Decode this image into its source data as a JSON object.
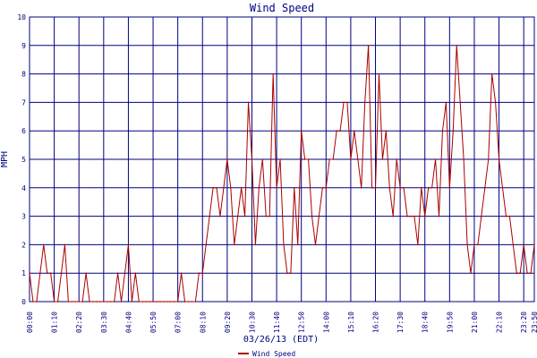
{
  "chart_data": {
    "type": "line",
    "title": "Wind Speed",
    "xlabel": "03/26/13 (EDT)",
    "ylabel": "MPH",
    "ylim": [
      0,
      10
    ],
    "xlim": [
      "00:00",
      "23:50"
    ],
    "grid": true,
    "legend_placement": "bottom-center",
    "colors": {
      "series": "#aa0000",
      "grid": "#000080",
      "frame": "#000080",
      "text": "#000080",
      "background": "#ffffff"
    },
    "x_ticks": [
      "00:00",
      "01:10",
      "02:20",
      "03:30",
      "04:40",
      "05:50",
      "07:00",
      "08:10",
      "09:20",
      "10:30",
      "11:40",
      "12:50",
      "14:00",
      "15:10",
      "16:20",
      "17:30",
      "18:40",
      "19:50",
      "21:00",
      "22:10",
      "23:20",
      "23:50"
    ],
    "y_ticks": [
      "0",
      "1",
      "2",
      "3",
      "4",
      "5",
      "6",
      "7",
      "8",
      "9",
      "10"
    ],
    "legend": [
      "Wind Speed"
    ],
    "series": [
      {
        "name": "Wind Speed",
        "x": [
          "00:00",
          "00:10",
          "00:20",
          "00:30",
          "00:40",
          "00:50",
          "01:00",
          "01:10",
          "01:20",
          "01:30",
          "01:40",
          "01:50",
          "02:00",
          "02:10",
          "02:20",
          "02:30",
          "02:40",
          "02:50",
          "03:00",
          "03:10",
          "03:20",
          "03:30",
          "03:40",
          "03:50",
          "04:00",
          "04:10",
          "04:20",
          "04:30",
          "04:40",
          "04:50",
          "05:00",
          "05:10",
          "05:20",
          "05:30",
          "05:40",
          "05:50",
          "06:00",
          "06:10",
          "06:20",
          "06:30",
          "06:40",
          "06:50",
          "07:00",
          "07:10",
          "07:20",
          "07:30",
          "07:40",
          "07:50",
          "08:00",
          "08:10",
          "08:20",
          "08:30",
          "08:40",
          "08:50",
          "09:00",
          "09:10",
          "09:20",
          "09:30",
          "09:40",
          "09:50",
          "10:00",
          "10:10",
          "10:20",
          "10:30",
          "10:40",
          "10:50",
          "11:00",
          "11:10",
          "11:20",
          "11:30",
          "11:40",
          "11:50",
          "12:00",
          "12:10",
          "12:20",
          "12:30",
          "12:40",
          "12:50",
          "13:00",
          "13:10",
          "13:20",
          "13:30",
          "13:40",
          "13:50",
          "14:00",
          "14:10",
          "14:20",
          "14:30",
          "14:40",
          "14:50",
          "15:00",
          "15:10",
          "15:20",
          "15:30",
          "15:40",
          "15:50",
          "16:00",
          "16:10",
          "16:20",
          "16:30",
          "16:40",
          "16:50",
          "17:00",
          "17:10",
          "17:20",
          "17:30",
          "17:40",
          "17:50",
          "18:00",
          "18:10",
          "18:20",
          "18:30",
          "18:40",
          "18:50",
          "19:00",
          "19:10",
          "19:20",
          "19:30",
          "19:40",
          "19:50",
          "20:00",
          "20:10",
          "20:20",
          "20:30",
          "20:40",
          "20:50",
          "21:00",
          "21:10",
          "21:20",
          "21:30",
          "21:40",
          "21:50",
          "22:00",
          "22:10",
          "22:20",
          "22:30",
          "22:40",
          "22:50",
          "23:00",
          "23:10",
          "23:20",
          "23:30",
          "23:40",
          "23:50"
        ],
        "values": [
          1,
          0,
          0,
          1,
          2,
          1,
          1,
          0,
          0,
          1,
          2,
          0,
          0,
          0,
          0,
          0,
          1,
          0,
          0,
          0,
          0,
          0,
          0,
          0,
          0,
          1,
          0,
          1,
          2,
          0,
          1,
          0,
          0,
          0,
          0,
          0,
          0,
          0,
          0,
          0,
          0,
          0,
          0,
          1,
          0,
          0,
          0,
          0,
          1,
          1,
          2,
          3,
          4,
          4,
          3,
          4,
          5,
          4,
          2,
          3,
          4,
          3,
          7,
          5,
          2,
          4,
          5,
          3,
          3,
          8,
          4,
          5,
          2,
          1,
          1,
          4,
          2,
          6,
          5,
          5,
          3,
          2,
          3,
          4,
          4,
          5,
          5,
          6,
          6,
          7,
          7,
          5,
          6,
          5,
          4,
          7,
          9,
          4,
          4,
          8,
          5,
          6,
          4,
          3,
          5,
          4,
          4,
          3,
          3,
          3,
          2,
          4,
          3,
          4,
          4,
          5,
          3,
          6,
          7,
          4,
          6,
          9,
          7,
          5,
          2,
          1,
          2,
          2,
          3,
          4,
          5,
          8,
          7,
          5,
          4,
          3,
          3,
          2,
          1,
          1,
          2,
          1,
          1,
          2
        ]
      }
    ]
  }
}
